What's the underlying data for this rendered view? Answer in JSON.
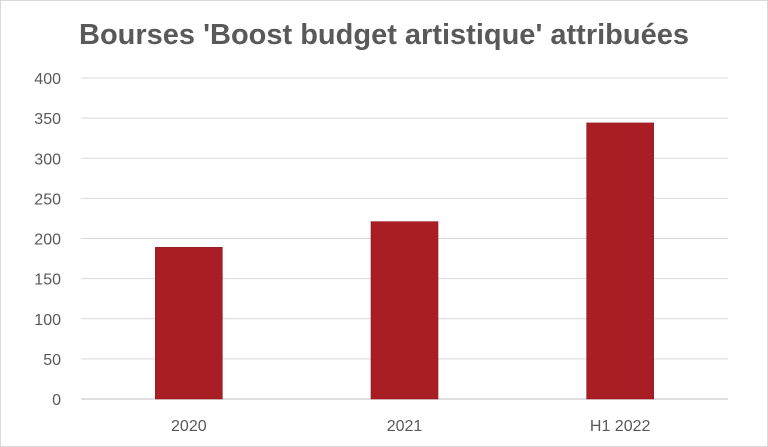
{
  "chart_data": {
    "type": "bar",
    "title": "Bourses 'Boost budget artistique' attribuées",
    "categories": [
      "2020",
      "2021",
      "H1 2022"
    ],
    "values": [
      189,
      221,
      344
    ],
    "ylim": [
      0,
      400
    ],
    "yticks": [
      0,
      50,
      100,
      150,
      200,
      250,
      300,
      350,
      400
    ],
    "ytick_labels": [
      "0",
      "50",
      "100",
      "150",
      "200",
      "250",
      "300",
      "350",
      "400"
    ],
    "xlabel": "",
    "ylabel": "",
    "grid": true,
    "legend": "none",
    "colors": {
      "bar": "#A81E24",
      "grid": "#D9D9D9",
      "text": "#595959"
    }
  }
}
